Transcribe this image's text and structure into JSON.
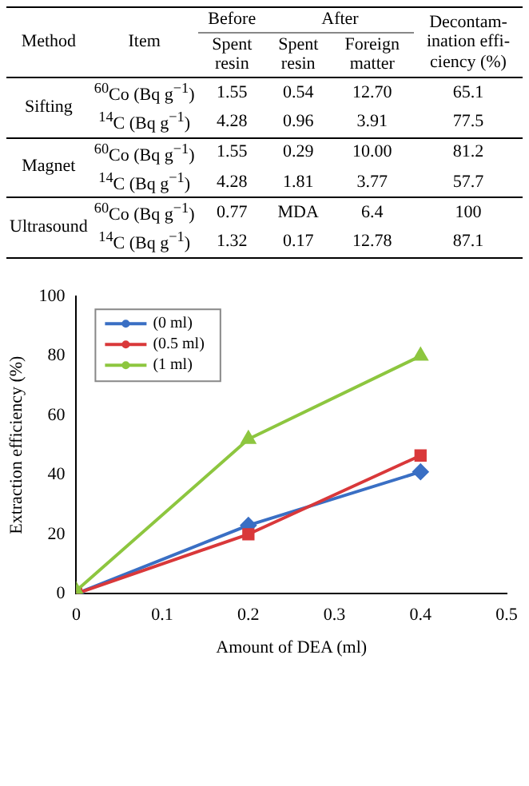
{
  "chart_data": [
    {
      "type": "other",
      "annotations": [
        "Method",
        "Item",
        "Before",
        "After",
        "Decontam-ination effi-ciency (%)",
        "Spent resin",
        "Spent resin",
        "Foreign matter",
        "Sifting",
        "$^{60}$Co (Bq g$^{−1}$)",
        "1.55",
        "0.54",
        "12.70",
        "65.1",
        "$^{14}$C (Bq g$^{−1}$)",
        "4.28",
        "0.96",
        "3.91",
        "77.5",
        "Magnet",
        "$^{60}$Co (Bq g$^{−1}$)",
        "1.55",
        "0.29",
        "10.00",
        "81.2",
        "$^{14}$C (Bq g$^{−1}$)",
        "4.28",
        "1.81",
        "3.77",
        "57.7",
        "Ultrasound",
        "$^{60}$Co (Bq g$^{−1}$)",
        "0.77",
        "MDA",
        "6.4",
        "100",
        "$^{14}$C (Bq g$^{−1}$)",
        "1.32",
        "0.17",
        "12.78",
        "87.1"
      ]
    },
    {
      "type": "line",
      "xlabel": "Amount of DEA (ml)",
      "ylabel": "Extraction efficiency (%)",
      "x": [
        0,
        0.2,
        0.4
      ],
      "xlim": [
        0,
        0.5
      ],
      "xticks": [
        0,
        0.1,
        0.2,
        0.3,
        0.4,
        0.5
      ],
      "ylim": [
        0,
        100
      ],
      "yticks": [
        0,
        20,
        40,
        60,
        80,
        100
      ],
      "legend": "top left",
      "series": [
        {
          "name": "(0 ml)",
          "color": "#3a6fc4",
          "marker": "diamond",
          "values": [
            0,
            23,
            41
          ]
        },
        {
          "name": "(0.5 ml)",
          "color": "#d9383a",
          "marker": "square",
          "values": [
            0,
            20,
            46.5
          ]
        },
        {
          "name": "(1 ml)",
          "color": "#8dc63f",
          "marker": "triangle",
          "values": [
            1,
            52,
            80
          ]
        }
      ]
    }
  ]
}
